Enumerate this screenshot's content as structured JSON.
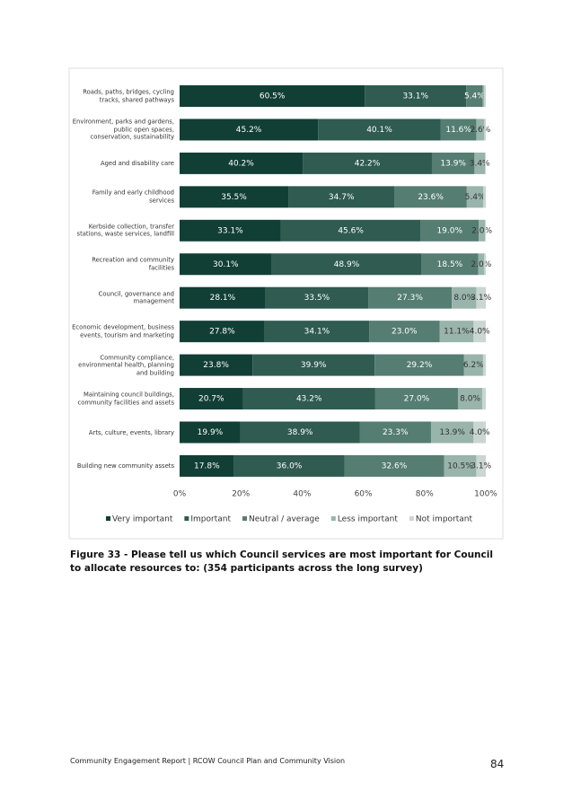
{
  "chart_data": {
    "type": "stacked_bar_horizontal",
    "categories": [
      "Roads, paths, bridges, cycling tracks, shared pathways",
      "Environment, parks and gardens, public open spaces, conservation, sustainability",
      "Aged and disability care",
      "Family and early childhood services",
      "Kerbside collection, transfer stations, waste services, landfill",
      "Recreation and community facilities",
      "Council, governance and management",
      "Economic development, business events, tourism and marketing",
      "Community compliance, environmental health, planning and building",
      "Maintaining council buildings, community facilities and assets",
      "Arts, culture, events, library",
      "Building new community assets"
    ],
    "series": [
      {
        "name": "Very important",
        "color": "#113f35",
        "values": [
          60.5,
          45.2,
          40.2,
          35.5,
          33.1,
          30.1,
          28.1,
          27.8,
          23.8,
          20.7,
          19.9,
          17.8
        ],
        "value_labels": [
          "60.5%",
          "45.2%",
          "40.2%",
          "35.5%",
          "33.1%",
          "30.1%",
          "28.1%",
          "27.8%",
          "23.8%",
          "20.7%",
          "19.9%",
          "17.8%"
        ]
      },
      {
        "name": "Important",
        "color": "#2f5b51",
        "values": [
          33.1,
          40.1,
          42.2,
          34.7,
          45.6,
          48.9,
          33.5,
          34.1,
          39.9,
          43.2,
          38.9,
          36.0
        ],
        "value_labels": [
          "33.1%",
          "40.1%",
          "42.2%",
          "34.7%",
          "45.6%",
          "48.9%",
          "33.5%",
          "34.1%",
          "39.9%",
          "43.2%",
          "38.9%",
          "36.0%"
        ]
      },
      {
        "name": "Neutral / average",
        "color": "#557d72",
        "values": [
          5.4,
          11.6,
          13.9,
          23.6,
          19.0,
          18.5,
          27.3,
          23.0,
          29.2,
          27.0,
          23.3,
          32.6
        ],
        "value_labels": [
          "5.4%",
          "11.6%",
          "13.9%",
          "23.6%",
          "19.0%",
          "18.5%",
          "27.3%",
          "23.0%",
          "29.2%",
          "27.0%",
          "23.3%",
          "32.6%"
        ]
      },
      {
        "name": "Less important",
        "color": "#98b4ab",
        "values": [
          0.5,
          2.6,
          3.4,
          5.4,
          2.0,
          2.0,
          8.0,
          11.1,
          6.2,
          8.0,
          13.9,
          10.5
        ],
        "value_labels": [
          null,
          "2.6%",
          "3.4%",
          "5.4%",
          "2.0%",
          "2.0%",
          "8.0%",
          "11.1%",
          "6.2%",
          "8.0%",
          "13.9%",
          "10.5%"
        ]
      },
      {
        "name": "Not important",
        "color": "#c9d6d1",
        "values": [
          0.5,
          0.5,
          0.3,
          0.8,
          0.3,
          0.5,
          3.1,
          4.0,
          0.9,
          1.1,
          4.0,
          3.1
        ],
        "value_labels": [
          null,
          null,
          null,
          null,
          null,
          null,
          "3.1%",
          "4.0%",
          null,
          null,
          "4.0%",
          "3.1%"
        ]
      }
    ],
    "xlim": [
      0,
      100
    ],
    "xticks": [
      {
        "value": 0,
        "label": "0%"
      },
      {
        "value": 20,
        "label": "20%"
      },
      {
        "value": 40,
        "label": "40%"
      },
      {
        "value": 60,
        "label": "60%"
      },
      {
        "value": 80,
        "label": "80%"
      },
      {
        "value": 100,
        "label": "100%"
      }
    ],
    "legend": "bottom"
  },
  "caption": "Figure 33 - Please tell us which Council services are most important for Council to allocate resources to: (354 participants across the long survey)",
  "footer": {
    "text": "Community Engagement Report | RCOW Council Plan and Community Vision",
    "page": "84"
  }
}
